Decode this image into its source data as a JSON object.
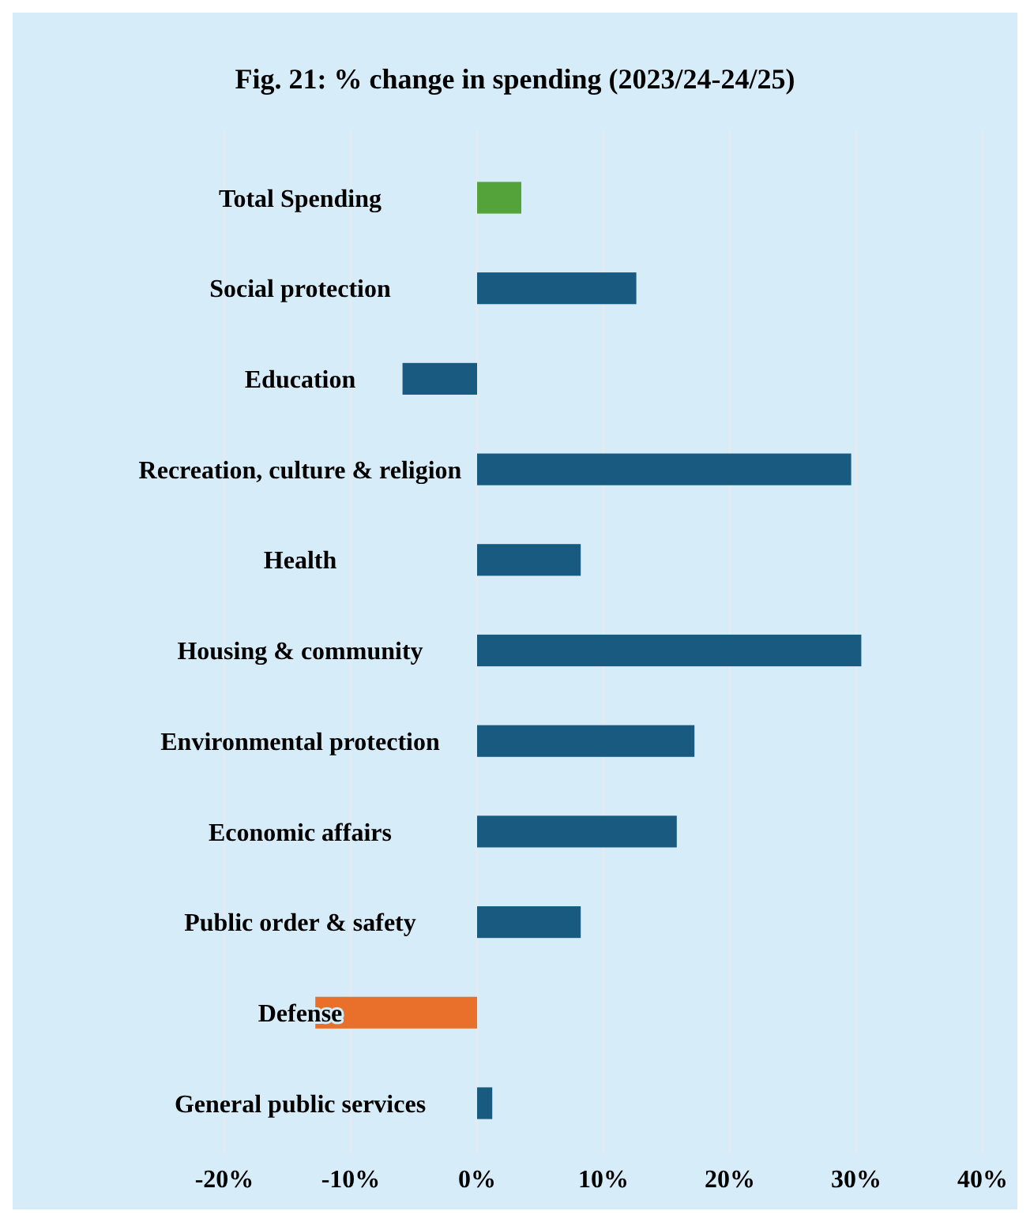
{
  "chart_data": {
    "type": "bar",
    "orientation": "horizontal",
    "title": "Fig. 21: % change in spending (2023/24-24/25)",
    "categories": [
      "Total Spending",
      "Social protection",
      "Education",
      "Recreation, culture & religion",
      "Health",
      "Housing & community",
      "Environmental protection",
      "Economic affairs",
      "Public order & safety",
      "Defense",
      "General public services"
    ],
    "values": [
      3.5,
      12.6,
      -5.9,
      29.6,
      8.2,
      30.4,
      17.2,
      15.8,
      8.2,
      -12.8,
      1.2
    ],
    "colors": [
      "#53a33a",
      "#185a80",
      "#185a80",
      "#185a80",
      "#185a80",
      "#185a80",
      "#185a80",
      "#185a80",
      "#185a80",
      "#e8702a",
      "#185a80"
    ],
    "xlim": [
      -20,
      40
    ],
    "xticks": [
      {
        "value": -20,
        "label": "-20%"
      },
      {
        "value": -10,
        "label": "-10%"
      },
      {
        "value": 0,
        "label": "0%"
      },
      {
        "value": 10,
        "label": "10%"
      },
      {
        "value": 20,
        "label": "20%"
      },
      {
        "value": 30,
        "label": "30%"
      },
      {
        "value": 40,
        "label": "40%"
      }
    ],
    "grid": "x"
  }
}
